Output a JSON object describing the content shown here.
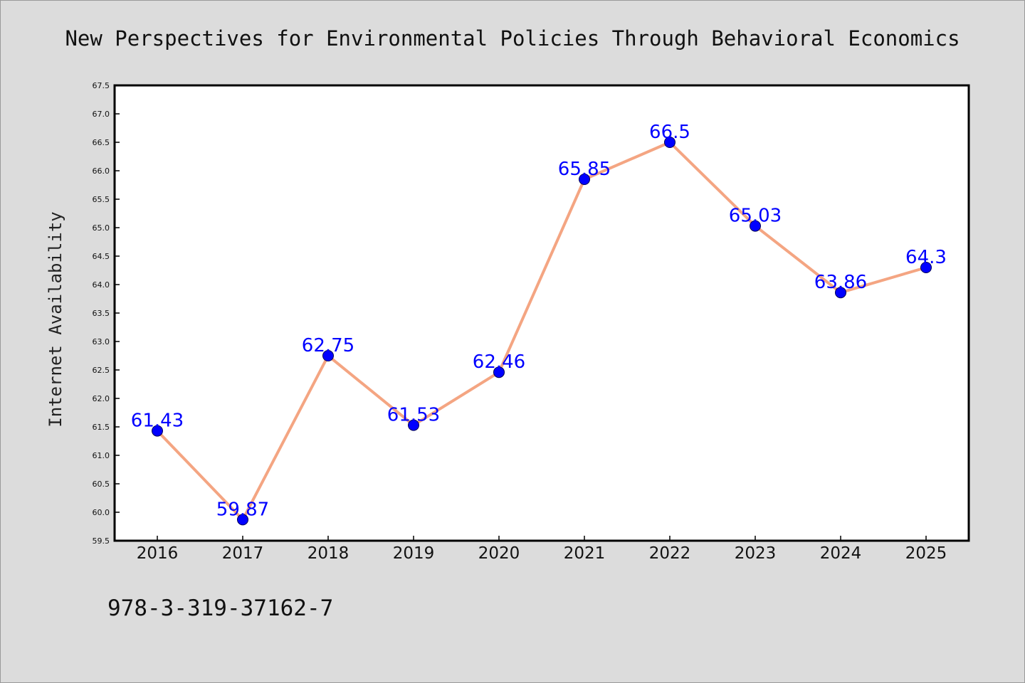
{
  "chart_data": {
    "type": "line",
    "title": "New Perspectives for Environmental Policies Through Behavioral Economics",
    "xlabel": "",
    "ylabel": "Internet Availability",
    "categories": [
      "2016",
      "2017",
      "2018",
      "2019",
      "2020",
      "2021",
      "2022",
      "2023",
      "2024",
      "2025"
    ],
    "series": [
      {
        "values": [
          61.43,
          59.87,
          62.75,
          61.53,
          62.46,
          65.85,
          66.5,
          65.03,
          63.86,
          64.3
        ],
        "line_color": "#f4a582",
        "marker_color": "#0000ff"
      }
    ],
    "data_labels": [
      "61.43",
      "59.87",
      "62.75",
      "61.53",
      "62.46",
      "65.85",
      "66.5",
      "65.03",
      "63.86",
      "64.3"
    ],
    "ylim": [
      59.5,
      67.5
    ],
    "yticks": [
      "59.5",
      "60.0",
      "60.5",
      "61.0",
      "61.5",
      "62.0",
      "62.5",
      "63.0",
      "63.5",
      "64.0",
      "64.5",
      "65.0",
      "65.5",
      "66.0",
      "66.5",
      "67.0",
      "67.5"
    ],
    "grid": false,
    "legend": "none",
    "label_color": "#0000ff"
  },
  "footer": {
    "isbn": "978-3-319-37162-7"
  }
}
